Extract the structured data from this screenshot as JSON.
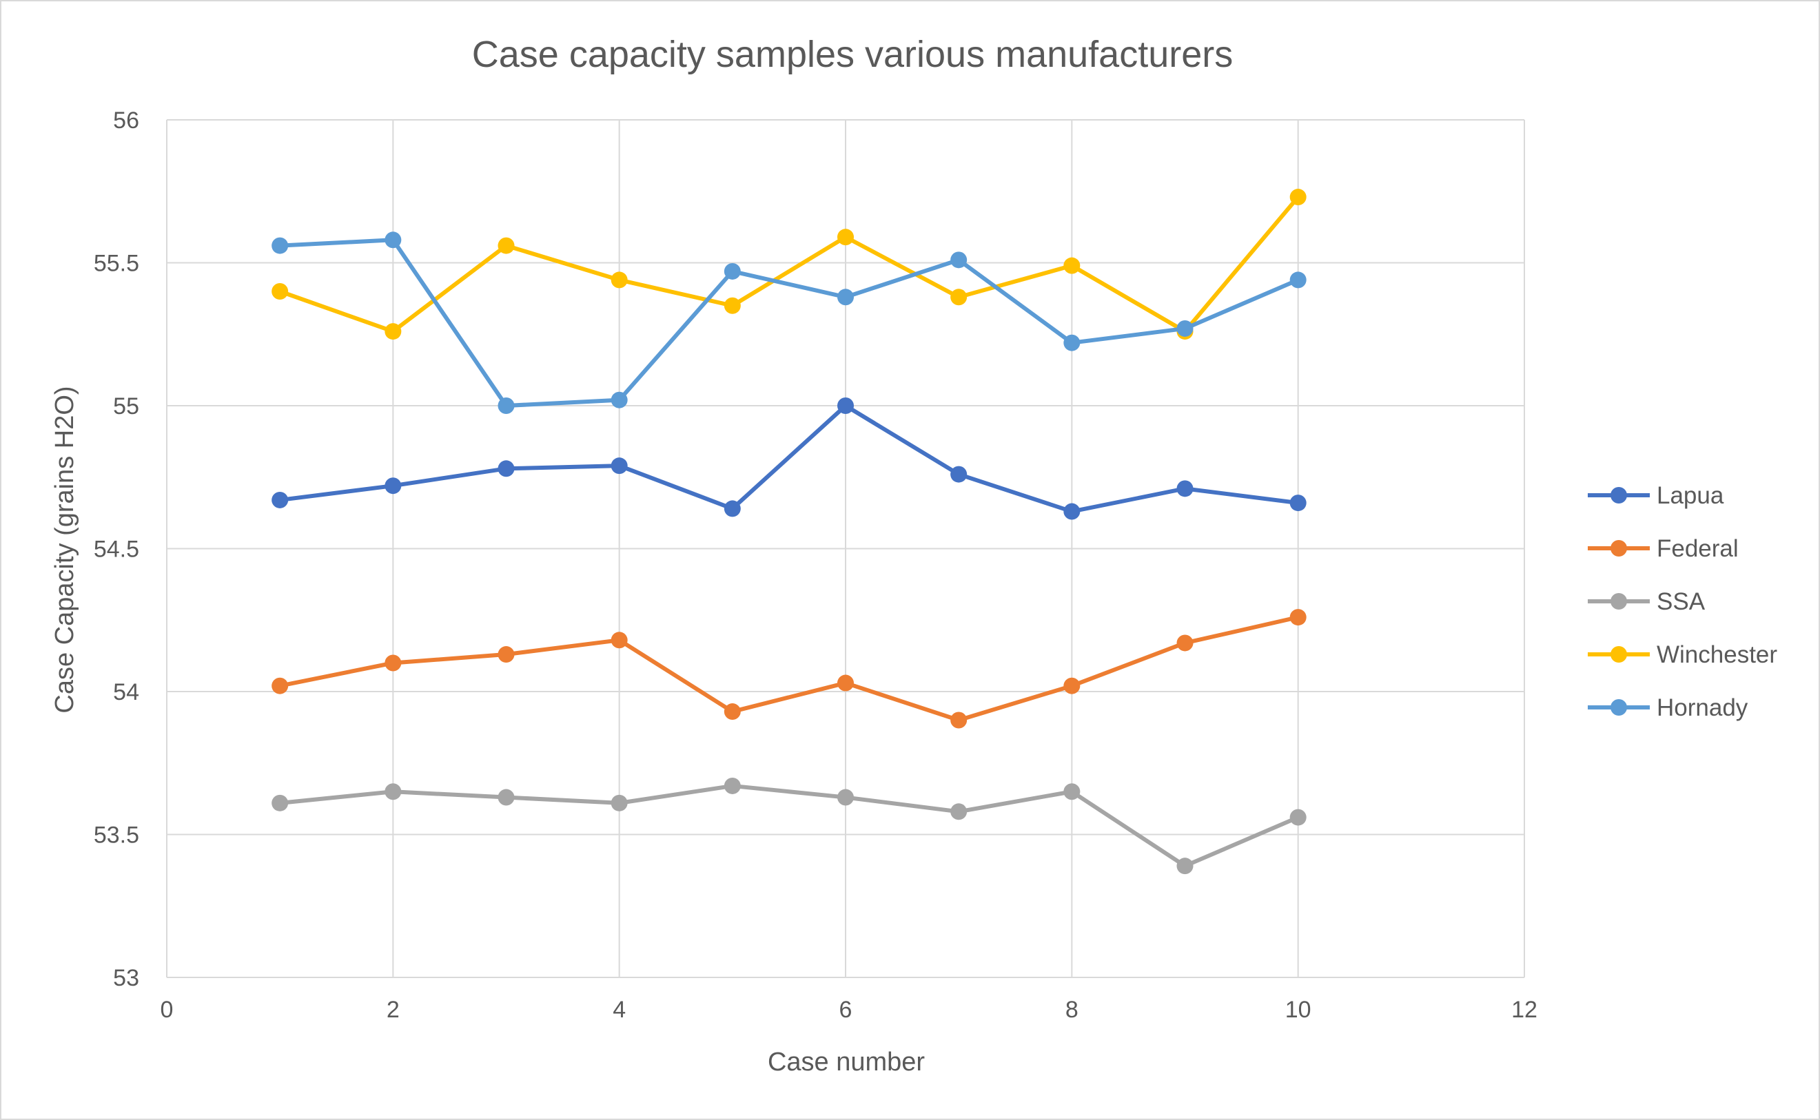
{
  "chart_data": {
    "type": "scatter",
    "title": "Case capacity samples various manufacturers",
    "xlabel": "Case number",
    "ylabel": "Case Capacity (grains H2O)",
    "xlim": [
      0,
      12
    ],
    "ylim": [
      53,
      56
    ],
    "x_ticks": [
      "0",
      "2",
      "4",
      "6",
      "8",
      "10",
      "12"
    ],
    "y_ticks": [
      "53",
      "53.5",
      "54",
      "54.5",
      "55",
      "55.5",
      "56"
    ],
    "grid": true,
    "legend_position": "right",
    "x": [
      1,
      2,
      3,
      4,
      5,
      6,
      7,
      8,
      9,
      10
    ],
    "series": [
      {
        "name": "Lapua",
        "color": "#4472c4",
        "values": [
          54.67,
          54.72,
          54.78,
          54.79,
          54.64,
          55.0,
          54.76,
          54.63,
          54.71,
          54.66
        ]
      },
      {
        "name": "Federal",
        "color": "#ed7d31",
        "values": [
          54.02,
          54.1,
          54.13,
          54.18,
          53.93,
          54.03,
          53.9,
          54.02,
          54.17,
          54.26
        ]
      },
      {
        "name": "SSA",
        "color": "#a5a5a5",
        "values": [
          53.61,
          53.65,
          53.63,
          53.61,
          53.67,
          53.63,
          53.58,
          53.65,
          53.39,
          53.56
        ]
      },
      {
        "name": "Winchester",
        "color": "#ffc000",
        "values": [
          55.4,
          55.26,
          55.56,
          55.44,
          55.35,
          55.59,
          55.38,
          55.49,
          55.26,
          55.73
        ]
      },
      {
        "name": "Hornady",
        "color": "#5b9bd5",
        "values": [
          55.56,
          55.58,
          55.0,
          55.02,
          55.47,
          55.38,
          55.51,
          55.22,
          55.27,
          55.44
        ]
      }
    ]
  }
}
